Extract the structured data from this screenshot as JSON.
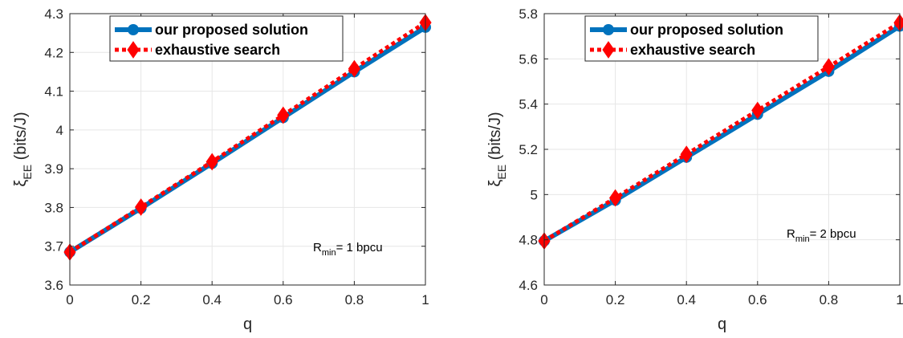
{
  "chart_data": [
    {
      "type": "line",
      "x": [
        0,
        0.2,
        0.4,
        0.6,
        0.8,
        1
      ],
      "series": [
        {
          "name": "our proposed solution",
          "values": [
            3.685,
            3.798,
            3.914,
            4.032,
            4.15,
            4.265
          ]
        },
        {
          "name": "exhaustive search",
          "values": [
            3.685,
            3.801,
            3.918,
            4.038,
            4.158,
            4.277
          ]
        }
      ],
      "xlabel": "q",
      "ylabel_symbol": "ξ",
      "ylabel_subscript": "EE",
      "ylabel_unit": " (bits/J)",
      "xlim": [
        0,
        1
      ],
      "ylim": [
        3.6,
        4.3
      ],
      "xticks": [
        "0",
        "0.2",
        "0.4",
        "0.6",
        "0.8",
        "1"
      ],
      "yticks": [
        "3.6",
        "3.7",
        "3.8",
        "3.9",
        "4",
        "4.1",
        "4.2",
        "4.3"
      ],
      "annotation": {
        "main": "R",
        "sub": "min",
        "rest": "= 1 bpcu"
      },
      "grid": true,
      "legend_position": "top-center"
    },
    {
      "type": "line",
      "x": [
        0,
        0.2,
        0.4,
        0.6,
        0.8,
        1
      ],
      "series": [
        {
          "name": "our proposed solution",
          "values": [
            4.795,
            4.975,
            5.165,
            5.355,
            5.545,
            5.745
          ]
        },
        {
          "name": "exhaustive search",
          "values": [
            4.795,
            4.985,
            5.178,
            5.372,
            5.565,
            5.76
          ]
        }
      ],
      "xlabel": "q",
      "ylabel_symbol": "ξ",
      "ylabel_subscript": "EE",
      "ylabel_unit": " (bits/J)",
      "xlim": [
        0,
        1
      ],
      "ylim": [
        4.6,
        5.8
      ],
      "xticks": [
        "0",
        "0.2",
        "0.4",
        "0.6",
        "0.8",
        "1"
      ],
      "yticks": [
        "4.6",
        "4.8",
        "5",
        "5.2",
        "5.4",
        "5.6",
        "5.8"
      ],
      "annotation": {
        "main": "R",
        "sub": "min",
        "rest": "= 2 bpcu"
      },
      "grid": true,
      "legend_position": "top-center"
    }
  ],
  "colors": {
    "proposed": "#0072BD",
    "exhaustive": "#FF0000",
    "grid": "#E6E6E6",
    "axis": "#262626"
  }
}
